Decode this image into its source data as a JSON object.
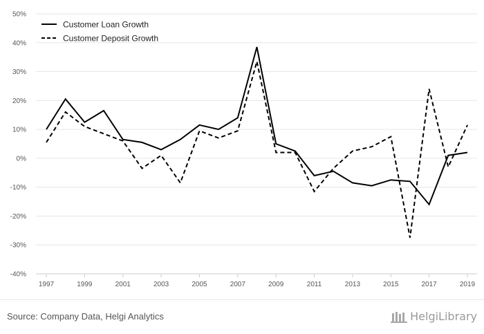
{
  "chart_data": {
    "type": "line",
    "title": "",
    "xlabel": "",
    "ylabel": "",
    "x": [
      1997,
      1998,
      1999,
      2000,
      2001,
      2002,
      2003,
      2004,
      2005,
      2006,
      2007,
      2008,
      2009,
      2010,
      2011,
      2012,
      2013,
      2014,
      2015,
      2016,
      2017,
      2018,
      2019
    ],
    "x_tick_labels": [
      "1997",
      "1999",
      "2001",
      "2003",
      "2005",
      "2007",
      "2009",
      "2011",
      "2013",
      "2015",
      "2017",
      "2019"
    ],
    "y_tick_labels": [
      "50%",
      "40%",
      "30%",
      "20%",
      "10%",
      "0%",
      "-10%",
      "-20%",
      "-30%",
      "-40%"
    ],
    "ylim": [
      -40,
      50
    ],
    "grid": true,
    "legend_position": "top-left",
    "series": [
      {
        "name": "Customer Loan Growth",
        "style": "solid",
        "color": "#000000",
        "values": [
          10,
          20.5,
          12.5,
          16.5,
          6.5,
          5.5,
          3,
          6.5,
          11.5,
          10,
          14,
          38.5,
          5,
          2.5,
          -6,
          -4.5,
          -8.5,
          -9.5,
          -7.5,
          -8,
          -16,
          1,
          2
        ]
      },
      {
        "name": "Customer Deposit Growth",
        "style": "dashed",
        "color": "#000000",
        "values": [
          5.5,
          16,
          11,
          8.5,
          6,
          -3.5,
          1,
          -8.5,
          9.5,
          7,
          9.5,
          33.5,
          2,
          2,
          -11.5,
          -3.5,
          2.5,
          4,
          7.5,
          -27.5,
          24,
          -3,
          11.5
        ]
      }
    ]
  },
  "footer": {
    "source": "Source: Company Data, Helgi Analytics",
    "brand": "HelgiLibrary"
  }
}
